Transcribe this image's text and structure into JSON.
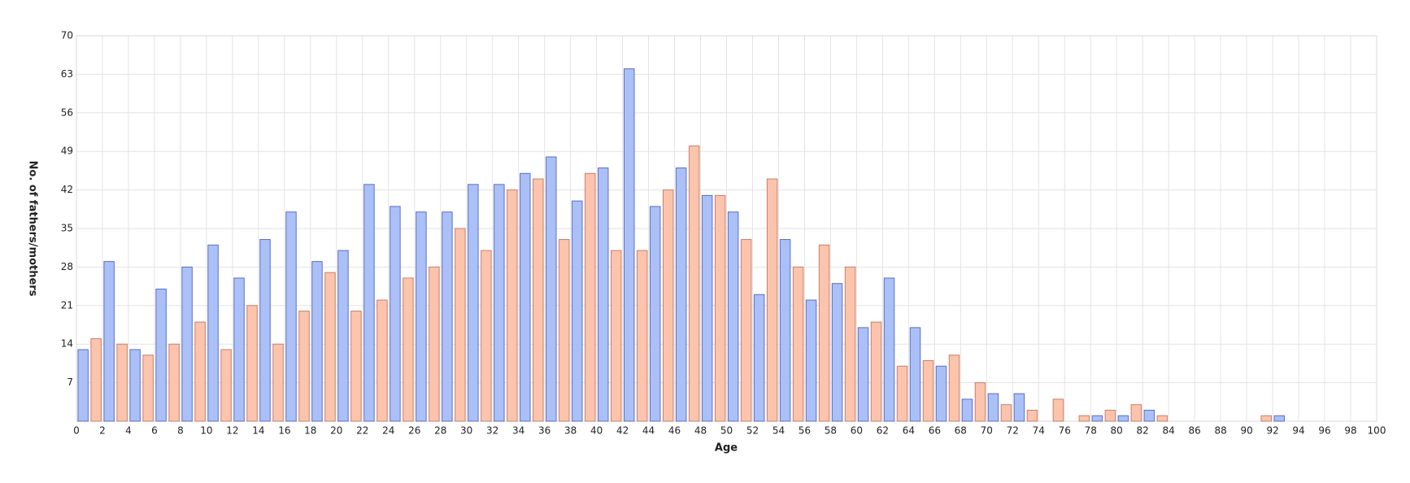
{
  "chart_data": {
    "type": "bar",
    "x_label": "Age",
    "y_label": "No. of fathers/mothers",
    "xlim": [
      0,
      100
    ],
    "xticks": [
      0,
      2,
      4,
      6,
      8,
      10,
      12,
      14,
      16,
      18,
      20,
      22,
      24,
      26,
      28,
      30,
      32,
      34,
      36,
      38,
      40,
      42,
      44,
      46,
      48,
      50,
      52,
      54,
      56,
      58,
      60,
      62,
      64,
      66,
      68,
      70,
      72,
      74,
      76,
      78,
      80,
      82,
      84,
      86,
      88,
      90,
      92,
      94,
      96,
      98,
      100
    ],
    "ylim": [
      0,
      70
    ],
    "yticks": [
      7,
      14,
      21,
      28,
      35,
      42,
      49,
      56,
      63,
      70
    ],
    "grid": true,
    "series": [
      {
        "color": "#abc0f7",
        "edge": "#5b6fc2",
        "x": [
          0,
          2,
          4,
          6,
          8,
          10,
          12,
          14,
          16,
          18,
          20,
          22,
          24,
          26,
          28,
          30,
          32,
          34,
          36,
          38,
          40,
          42,
          44,
          46,
          48,
          50,
          52,
          54,
          56,
          58,
          60,
          62,
          64,
          66,
          68,
          70,
          72,
          74,
          76,
          78,
          80,
          82,
          84,
          86,
          88,
          90,
          92
        ],
        "values": [
          13,
          29,
          13,
          24,
          28,
          32,
          26,
          33,
          38,
          29,
          31,
          43,
          39,
          38,
          38,
          43,
          43,
          45,
          48,
          40,
          46,
          64,
          39,
          46,
          41,
          38,
          23,
          33,
          22,
          25,
          17,
          26,
          17,
          10,
          4,
          5,
          5,
          0,
          0,
          1,
          1,
          2,
          0,
          0,
          0,
          0,
          1
        ]
      },
      {
        "color": "#fcc4ad",
        "edge": "#c7806a",
        "x": [
          1,
          3,
          5,
          7,
          9,
          11,
          13,
          15,
          17,
          19,
          21,
          23,
          25,
          27,
          29,
          31,
          33,
          35,
          37,
          39,
          41,
          43,
          45,
          47,
          49,
          51,
          53,
          55,
          57,
          59,
          61,
          63,
          65,
          67,
          69,
          71,
          73,
          75,
          77,
          79,
          81,
          83,
          85,
          87,
          89,
          91
        ],
        "values": [
          15,
          14,
          12,
          14,
          18,
          13,
          21,
          14,
          20,
          27,
          20,
          22,
          26,
          28,
          35,
          31,
          42,
          44,
          33,
          45,
          31,
          31,
          42,
          50,
          41,
          33,
          44,
          28,
          32,
          28,
          18,
          10,
          11,
          12,
          7,
          3,
          2,
          4,
          1,
          2,
          3,
          1,
          0,
          0,
          0,
          1
        ]
      }
    ]
  }
}
